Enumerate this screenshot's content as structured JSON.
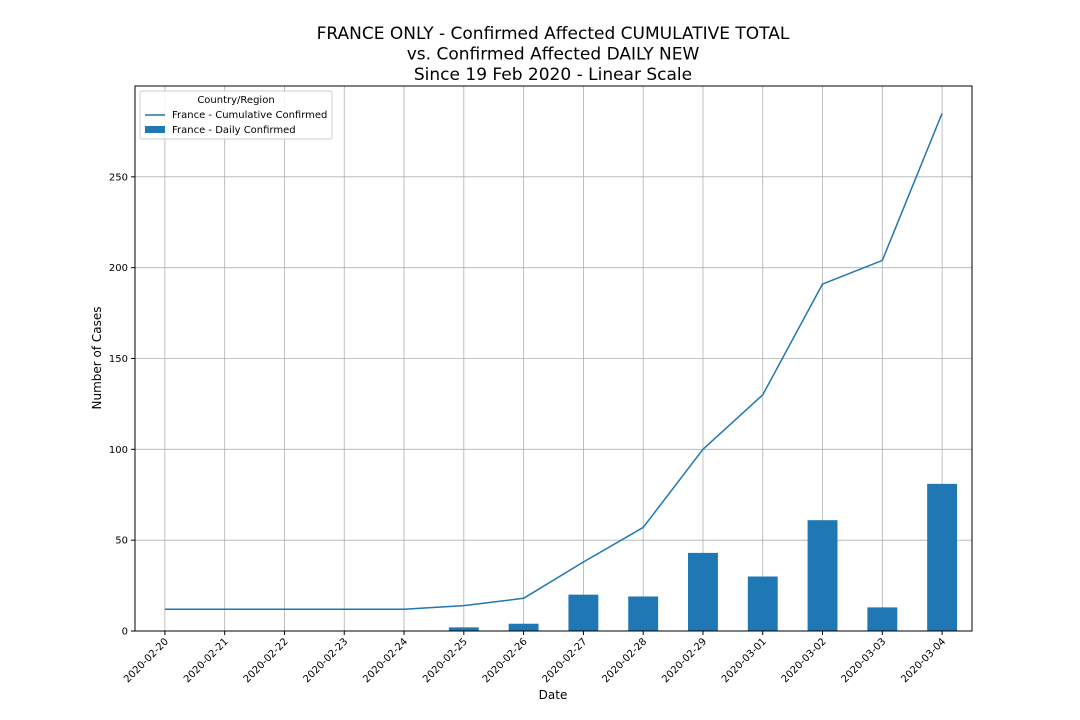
{
  "chart_data": {
    "type": "bar",
    "title_lines": [
      "FRANCE ONLY - Confirmed Affected CUMULATIVE TOTAL",
      "vs. Confirmed Affected DAILY NEW",
      "Since 19 Feb 2020 - Linear Scale"
    ],
    "xlabel": "Date",
    "ylabel": "Number of Cases",
    "ylim": [
      0,
      300
    ],
    "yticks": [
      0,
      50,
      100,
      150,
      200,
      250
    ],
    "grid": true,
    "categories": [
      "2020-02-20",
      "2020-02-21",
      "2020-02-22",
      "2020-02-23",
      "2020-02-24",
      "2020-02-25",
      "2020-02-26",
      "2020-02-27",
      "2020-02-28",
      "2020-02-29",
      "2020-03-01",
      "2020-03-02",
      "2020-03-03",
      "2020-03-04"
    ],
    "legend": {
      "title": "Country/Region",
      "placement": "top-left"
    },
    "series": [
      {
        "name": "France - Cumulative Confirmed",
        "type": "line",
        "color": "#1f77b4",
        "values": [
          12,
          12,
          12,
          12,
          12,
          14,
          18,
          38,
          57,
          100,
          130,
          191,
          204,
          285
        ]
      },
      {
        "name": "France - Daily Confirmed",
        "type": "bar",
        "color": "#1f77b4",
        "values": [
          0,
          0,
          0,
          0,
          0,
          2,
          4,
          20,
          19,
          43,
          30,
          61,
          13,
          81
        ]
      }
    ]
  }
}
